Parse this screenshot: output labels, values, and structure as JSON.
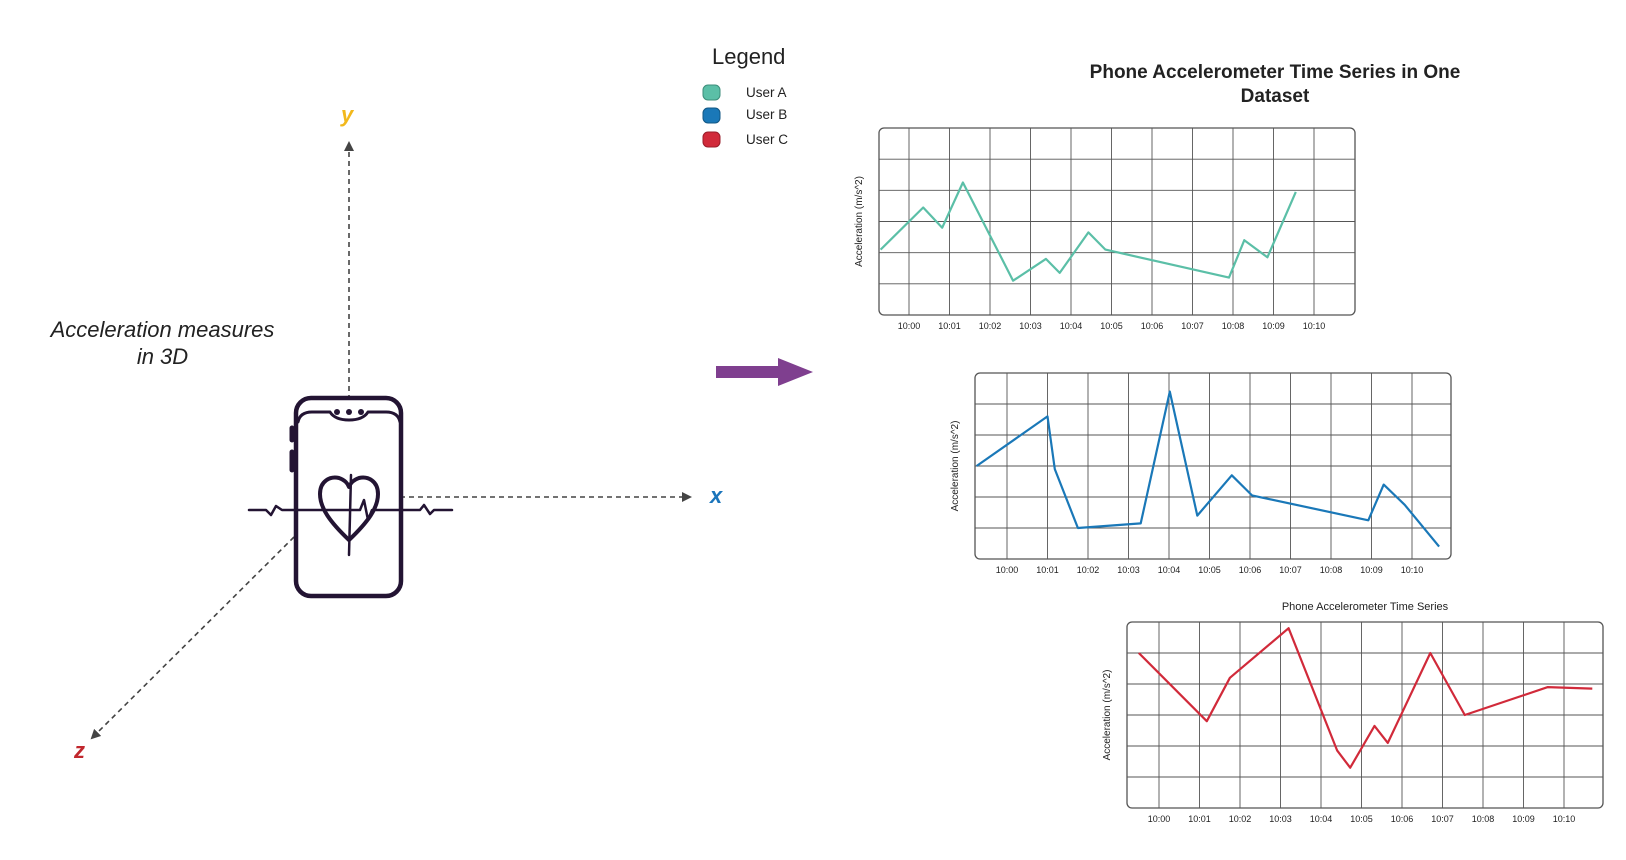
{
  "caption": [
    "Acceleration measures",
    "in 3D"
  ],
  "axes": {
    "x": {
      "label": "x",
      "color": "#1b75bb"
    },
    "y": {
      "label": "y",
      "color": "#f2b81c"
    },
    "z": {
      "label": "z",
      "color": "#c1272d"
    }
  },
  "legend": {
    "title": "Legend",
    "items": [
      {
        "label": "User A",
        "color": "#5bbfa7"
      },
      {
        "label": "User B",
        "color": "#1a78b8"
      },
      {
        "label": "User C",
        "color": "#d12a3a"
      }
    ]
  },
  "main_title": [
    "Phone Accelerometer Time Series in One",
    "Dataset"
  ],
  "colors": {
    "arrow": "#7f3f8f",
    "phone": "#231433",
    "axis_dash": "#444444"
  },
  "icons": {
    "phone": "phone-heartbeat-icon",
    "arrow": "right-arrow-icon"
  },
  "chart_data": [
    {
      "type": "line",
      "series_name": "User A",
      "color": "#5bbfa7",
      "ylabel": "Acceleration (m/s^2)",
      "title": "",
      "x_ticks": [
        "10:00",
        "10:01",
        "10:02",
        "10:03",
        "10:04",
        "10:05",
        "10:06",
        "10:07",
        "10:08",
        "10:09",
        "10:10"
      ],
      "x": [
        -0.7,
        0.35,
        0.82,
        1.33,
        2.57,
        3.38,
        3.72,
        4.43,
        4.85,
        7.9,
        8.28,
        8.85,
        9.55
      ],
      "y": [
        2.1,
        3.45,
        2.8,
        4.25,
        1.1,
        1.8,
        1.35,
        2.65,
        2.1,
        1.2,
        2.4,
        1.85,
        3.95
      ],
      "ylim": [
        0,
        6
      ]
    },
    {
      "type": "line",
      "series_name": "User B",
      "color": "#1a78b8",
      "ylabel": "Acceleration (m/s^2)",
      "title": "",
      "x_ticks": [
        "10:00",
        "10:01",
        "10:02",
        "10:03",
        "10:04",
        "10:05",
        "10:06",
        "10:07",
        "10:08",
        "10:09",
        "10:10"
      ],
      "x": [
        -0.75,
        1.0,
        1.18,
        1.75,
        3.3,
        4.02,
        4.7,
        5.55,
        6.05,
        8.92,
        9.3,
        9.82,
        10.67
      ],
      "y": [
        3.0,
        4.6,
        2.9,
        1.0,
        1.15,
        5.4,
        1.4,
        2.7,
        2.05,
        1.25,
        2.4,
        1.75,
        0.4
      ],
      "ylim": [
        0,
        6
      ]
    },
    {
      "type": "line",
      "series_name": "User C",
      "color": "#d12a3a",
      "ylabel": "Acceleration (m/s^2)",
      "title": "Phone Accelerometer Time Series",
      "x_ticks": [
        "10:00",
        "10:01",
        "10:02",
        "10:03",
        "10:04",
        "10:05",
        "10:06",
        "10:07",
        "10:08",
        "10:09",
        "10:10"
      ],
      "x": [
        -0.5,
        1.18,
        1.75,
        3.2,
        4.4,
        4.72,
        5.32,
        5.65,
        6.7,
        7.55,
        9.6,
        10.7
      ],
      "y": [
        5.0,
        2.8,
        4.2,
        5.8,
        1.85,
        1.3,
        2.65,
        2.1,
        5.0,
        3.0,
        3.9,
        3.85
      ],
      "ylim": [
        0,
        6
      ]
    }
  ]
}
